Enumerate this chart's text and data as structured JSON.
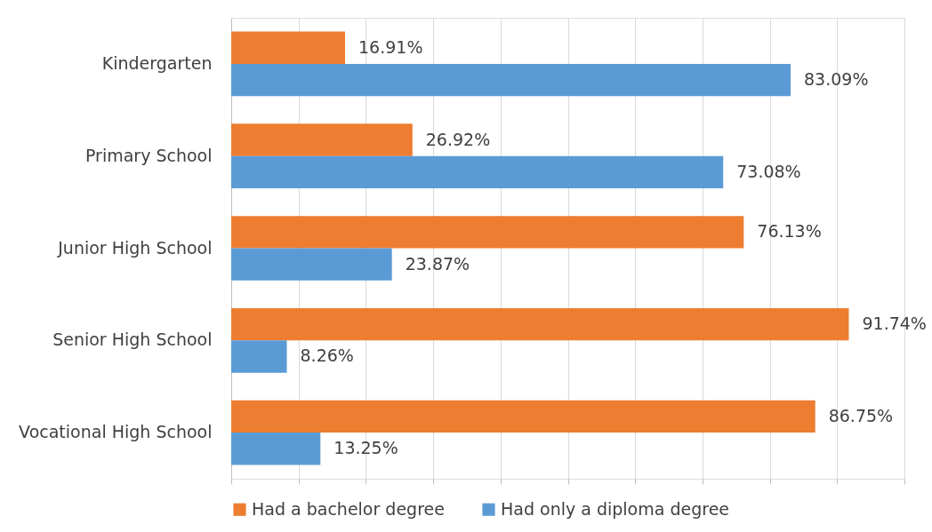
{
  "chart_data": {
    "type": "bar",
    "orientation": "horizontal",
    "categories": [
      "Kindergarten",
      "Primary School",
      "Junior High School",
      "Senior High School",
      "Vocational High School"
    ],
    "series": [
      {
        "name": "Had a bachelor degree",
        "color": "#ed7d31",
        "values": [
          16.91,
          26.92,
          76.13,
          91.74,
          86.75
        ],
        "value_labels": [
          "16.91%",
          "26.92%",
          "76.13%",
          "91.74%",
          "86.75%"
        ]
      },
      {
        "name": "Had only a diploma degree",
        "color": "#5b9bd5",
        "values": [
          83.09,
          73.08,
          23.87,
          8.26,
          13.25
        ],
        "value_labels": [
          "83.09%",
          "73.08%",
          "23.87%",
          "8.26%",
          "13.25%"
        ]
      }
    ],
    "xlim": [
      0,
      100
    ],
    "xticks": [
      {
        "value": 0,
        "label": null
      },
      {
        "value": 10,
        "label": null
      },
      {
        "value": 20,
        "label": null
      },
      {
        "value": 30,
        "label": null
      },
      {
        "value": 40,
        "label": null
      },
      {
        "value": 50,
        "label": null
      },
      {
        "value": 60,
        "label": null
      },
      {
        "value": 70,
        "label": null
      },
      {
        "value": 80,
        "label": null
      },
      {
        "value": 90,
        "label": null
      },
      {
        "value": 100,
        "label": null
      }
    ],
    "tick_labels": "y",
    "grid": "x",
    "legend": "bottom"
  }
}
